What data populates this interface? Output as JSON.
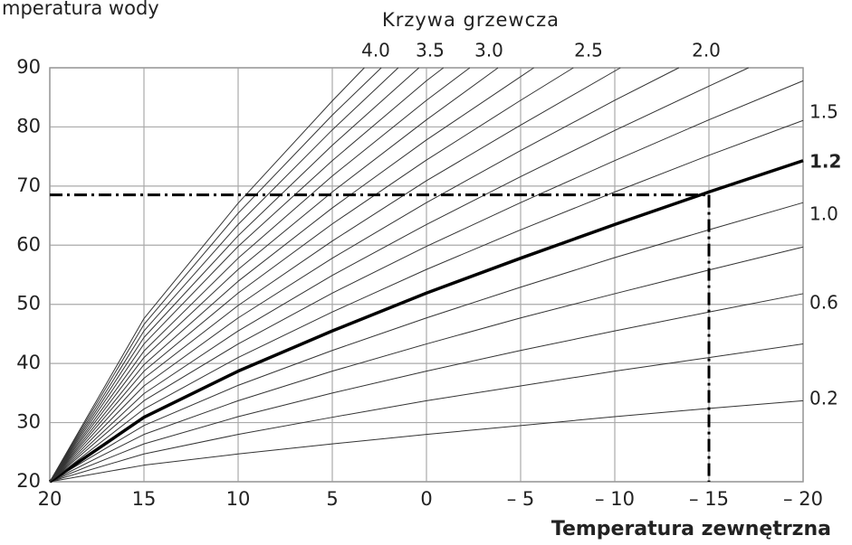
{
  "chart_data": {
    "type": "line",
    "title": "Krzywa grzewcza",
    "y_label": "mperatura wody",
    "x_label": "Temperatura zewnętrzna",
    "xlim": [
      20,
      -20
    ],
    "ylim": [
      20,
      90
    ],
    "xticks": [
      20,
      15,
      10,
      5,
      0,
      {
        "value": -5,
        "label": "– 5"
      },
      {
        "value": -10,
        "label": "– 10"
      },
      {
        "value": -15,
        "label": "– 15"
      },
      {
        "value": -20,
        "label": "– 20"
      }
    ],
    "yticks": [
      20,
      30,
      40,
      50,
      60,
      70,
      80,
      90
    ],
    "grid": true,
    "curve_labels_top": [
      "4.0",
      "3.5",
      "3.0",
      "2.5",
      "2.0"
    ],
    "curve_labels_right": [
      "1.5",
      "1.2",
      "1.0",
      "0.6",
      "0.2"
    ],
    "reference": {
      "x": -15,
      "y": 68.5
    },
    "series": [
      {
        "color": "#333",
        "width": 1,
        "x": [
          20,
          15,
          10,
          5,
          0,
          -5,
          -10,
          -15,
          -20
        ],
        "values": [
          20,
          22.8,
          24.7,
          26.4,
          28.0,
          29.5,
          31.0,
          32.4,
          33.7
        ]
      },
      {
        "color": "#333",
        "width": 1,
        "x": [
          20,
          15,
          10,
          5,
          0,
          -5,
          -10,
          -15,
          -20
        ],
        "values": [
          20,
          24.7,
          28.0,
          30.9,
          33.7,
          36.2,
          38.7,
          41.0,
          43.3
        ]
      },
      {
        "color": "#333",
        "width": 1,
        "x": [
          20,
          15,
          10,
          5,
          0,
          -5,
          -10,
          -15,
          -20
        ],
        "values": [
          20,
          26.4,
          31.0,
          35.0,
          38.7,
          42.2,
          45.5,
          48.7,
          51.8
        ]
      },
      {
        "color": "#333",
        "width": 1,
        "x": [
          20,
          15,
          10,
          5,
          0,
          -5,
          -10,
          -15,
          -20
        ],
        "values": [
          20,
          28.0,
          33.7,
          38.7,
          43.3,
          47.7,
          51.8,
          55.8,
          59.7
        ]
      },
      {
        "color": "#333",
        "width": 1,
        "x": [
          20,
          15,
          10,
          5,
          0,
          -5,
          -10,
          -15,
          -20
        ],
        "values": [
          20,
          29.5,
          36.3,
          42.2,
          47.7,
          52.9,
          57.9,
          62.6,
          67.2
        ]
      },
      {
        "color": "#000",
        "width": 3.5,
        "x": [
          20,
          15,
          10,
          5,
          0,
          -5,
          -10,
          -15,
          -20
        ],
        "values": [
          20,
          30.9,
          38.7,
          45.5,
          51.9,
          57.8,
          63.5,
          69.0,
          74.3
        ]
      },
      {
        "color": "#333",
        "width": 1,
        "x": [
          20,
          15,
          10,
          5,
          0,
          -5,
          -10,
          -15,
          -20
        ],
        "values": [
          20,
          32.3,
          41.0,
          48.7,
          55.9,
          62.6,
          69.0,
          75.2,
          81.1
        ]
      },
      {
        "color": "#333",
        "width": 1,
        "x": [
          20,
          15,
          10,
          5,
          0,
          -5,
          -10,
          -15,
          -20
        ],
        "values": [
          20,
          33.7,
          43.3,
          51.9,
          59.8,
          67.2,
          74.3,
          81.2,
          87.8
        ]
      },
      {
        "color": "#333",
        "width": 1,
        "x": [
          20,
          15,
          10,
          5,
          0,
          -5,
          -10,
          -15,
          -17.1
        ],
        "values": [
          20,
          34.9,
          45.5,
          54.9,
          63.5,
          71.6,
          79.4,
          86.9,
          90
        ]
      },
      {
        "color": "#333",
        "width": 1,
        "x": [
          20,
          15,
          10,
          5,
          0,
          -5,
          -10,
          -13.4
        ],
        "values": [
          20,
          36.2,
          47.7,
          57.8,
          67.2,
          76.0,
          84.5,
          90
        ]
      },
      {
        "color": "#333",
        "width": 1,
        "x": [
          20,
          15,
          10,
          5,
          0,
          -5,
          -10.3
        ],
        "values": [
          20,
          37.5,
          49.8,
          60.7,
          70.9,
          80.3,
          90
        ]
      },
      {
        "color": "#333",
        "width": 1,
        "x": [
          20,
          15,
          10,
          5,
          0,
          -5,
          -7.8
        ],
        "values": [
          20,
          38.7,
          51.9,
          63.6,
          74.4,
          84.5,
          90
        ]
      },
      {
        "color": "#333",
        "width": 1,
        "x": [
          20,
          15,
          10,
          5,
          0,
          -5,
          -5.7
        ],
        "values": [
          20,
          39.8,
          53.9,
          66.3,
          77.8,
          88.5,
          90
        ]
      },
      {
        "color": "#333",
        "width": 1,
        "x": [
          20,
          15,
          10,
          5,
          0,
          -3.8
        ],
        "values": [
          20,
          41.0,
          55.9,
          69.0,
          81.2,
          90
        ]
      },
      {
        "color": "#333",
        "width": 1,
        "x": [
          20,
          15,
          10,
          5,
          0,
          -2.3
        ],
        "values": [
          20,
          42.1,
          57.8,
          71.7,
          84.5,
          90
        ]
      },
      {
        "color": "#333",
        "width": 1,
        "x": [
          20,
          15,
          10,
          5,
          0,
          -0.9
        ],
        "values": [
          20,
          43.3,
          59.8,
          74.3,
          87.8,
          90
        ]
      },
      {
        "color": "#333",
        "width": 1,
        "x": [
          20,
          15,
          10,
          5,
          0.4
        ],
        "values": [
          20,
          44.4,
          61.6,
          76.9,
          90
        ]
      },
      {
        "color": "#333",
        "width": 1,
        "x": [
          20,
          15,
          10,
          5,
          1.5
        ],
        "values": [
          20,
          45.5,
          63.5,
          79.5,
          90
        ]
      },
      {
        "color": "#333",
        "width": 1,
        "x": [
          20,
          15,
          10,
          5,
          2.4
        ],
        "values": [
          20,
          46.6,
          65.4,
          82.0,
          90
        ]
      },
      {
        "color": "#333",
        "width": 1,
        "x": [
          20,
          15,
          10,
          5,
          3.3
        ],
        "values": [
          20,
          47.6,
          67.1,
          84.4,
          90
        ]
      }
    ]
  }
}
